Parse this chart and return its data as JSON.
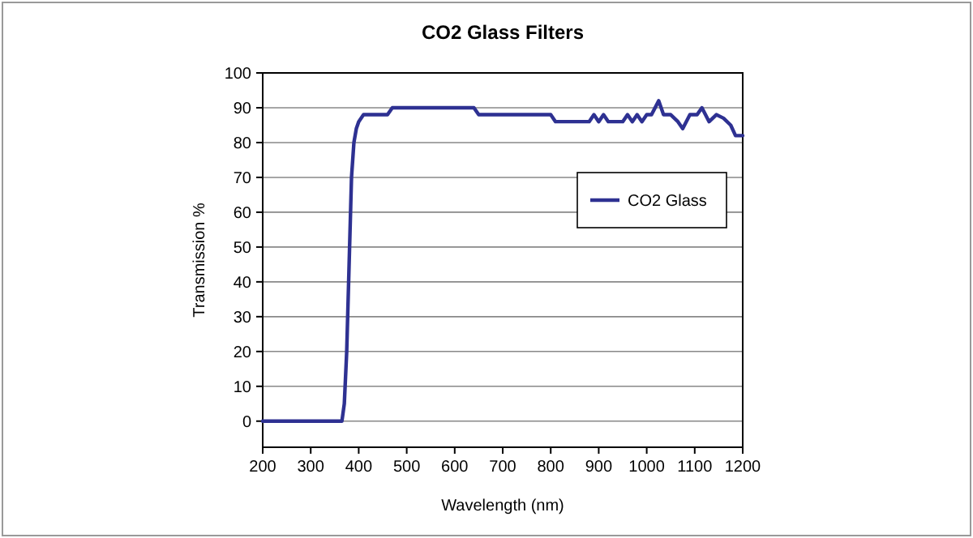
{
  "chart_data": {
    "type": "line",
    "title": "CO2 Glass Filters",
    "xlabel": "Wavelength (nm)",
    "ylabel": "Transmission %",
    "xlim": [
      200,
      1200
    ],
    "xticks": [
      200,
      300,
      400,
      500,
      600,
      700,
      800,
      900,
      1000,
      1100,
      1200
    ],
    "ylim": [
      -7.5,
      100
    ],
    "yticks": [
      0,
      10,
      20,
      30,
      40,
      50,
      60,
      70,
      80,
      90,
      100
    ],
    "grid": "y",
    "legend": "right",
    "marker": "none",
    "line_style": "solid",
    "series": [
      {
        "name": "CO2 Glass",
        "color": "#2e3192",
        "x": [
          200,
          365,
          370,
          375,
          380,
          385,
          390,
          395,
          400,
          410,
          460,
          470,
          640,
          650,
          800,
          810,
          880,
          890,
          900,
          910,
          920,
          950,
          960,
          970,
          980,
          990,
          1000,
          1010,
          1025,
          1035,
          1050,
          1065,
          1075,
          1090,
          1105,
          1115,
          1130,
          1145,
          1160,
          1175,
          1185,
          1200
        ],
        "values": [
          0,
          0,
          5,
          20,
          45,
          70,
          80,
          84,
          86,
          88,
          88,
          90,
          90,
          88,
          88,
          86,
          86,
          88,
          86,
          88,
          86,
          86,
          88,
          86,
          88,
          86,
          88,
          88,
          92,
          88,
          88,
          86,
          84,
          88,
          88,
          90,
          86,
          88,
          87,
          85,
          82,
          82
        ]
      }
    ]
  }
}
